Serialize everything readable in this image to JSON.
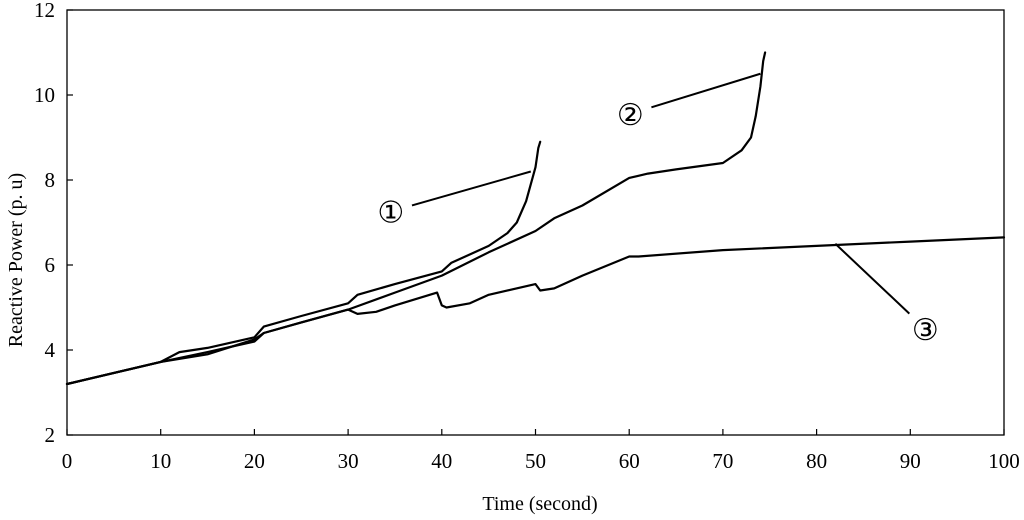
{
  "chart_data": {
    "type": "line",
    "xlabel": "Time (second)",
    "ylabel": "Reactive Power (p. u)",
    "xlim": [
      0,
      100
    ],
    "ylim": [
      2,
      12
    ],
    "x_ticks": [
      0,
      10,
      20,
      30,
      40,
      50,
      60,
      70,
      80,
      90,
      100
    ],
    "y_ticks": [
      2,
      4,
      6,
      8,
      10,
      12
    ],
    "grid": false,
    "legend": "none",
    "line_color": "#000000",
    "series": [
      {
        "name": "①",
        "x": [
          0,
          10,
          12,
          15,
          20,
          21,
          25,
          30,
          31,
          35,
          40,
          41,
          45,
          47,
          48,
          49,
          50,
          50.3,
          50.5
        ],
        "y": [
          3.2,
          3.72,
          3.95,
          4.05,
          4.3,
          4.55,
          4.8,
          5.1,
          5.3,
          5.55,
          5.85,
          6.05,
          6.45,
          6.75,
          7.0,
          7.5,
          8.3,
          8.75,
          8.9
        ]
      },
      {
        "name": "②",
        "x": [
          0,
          10,
          15,
          20,
          21,
          25,
          30,
          35,
          40,
          45,
          50,
          52,
          55,
          60,
          62,
          65,
          70,
          72,
          73,
          73.5,
          74,
          74.3,
          74.5
        ],
        "y": [
          3.2,
          3.72,
          3.95,
          4.2,
          4.4,
          4.65,
          4.95,
          5.35,
          5.75,
          6.3,
          6.8,
          7.1,
          7.4,
          8.05,
          8.15,
          8.25,
          8.4,
          8.7,
          9.0,
          9.5,
          10.2,
          10.8,
          11.0
        ]
      },
      {
        "name": "③",
        "x": [
          0,
          10,
          15,
          20,
          21,
          25,
          30,
          31,
          33,
          35,
          39.5,
          40,
          40.5,
          43,
          45,
          50,
          50.5,
          52,
          55,
          60,
          61,
          70,
          80,
          90,
          100
        ],
        "y": [
          3.2,
          3.72,
          3.9,
          4.25,
          4.4,
          4.65,
          4.95,
          4.85,
          4.9,
          5.05,
          5.35,
          5.05,
          5.0,
          5.1,
          5.3,
          5.55,
          5.4,
          5.45,
          5.75,
          6.2,
          6.2,
          6.35,
          6.45,
          6.55,
          6.65
        ]
      }
    ],
    "annotations": [
      {
        "text": "①",
        "points_to": [
          49.5,
          8.2
        ]
      },
      {
        "text": "②",
        "points_to": [
          74.0,
          10.5
        ]
      },
      {
        "text": "③",
        "points_to": [
          82.0,
          6.5
        ]
      }
    ]
  }
}
